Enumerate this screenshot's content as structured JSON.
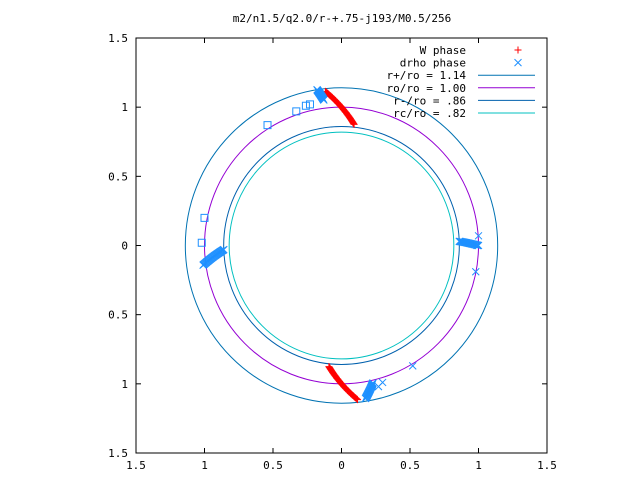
{
  "chart_data": {
    "type": "scatter",
    "title": "m2/n1.5/q2.0/r-+.75-j193/M0.5/256",
    "xlabel": "",
    "ylabel": "",
    "xlim": [
      -1.5,
      1.5
    ],
    "ylim": [
      -1.5,
      1.5
    ],
    "x_ticks": [
      -1.5,
      -1,
      -0.5,
      0,
      0.5,
      1,
      1.5
    ],
    "y_ticks": [
      -1.5,
      -1,
      -0.5,
      0,
      0.5,
      1,
      1.5
    ],
    "x_tick_labels": [
      "1.5",
      "1",
      "0.5",
      "0",
      "0.5",
      "1",
      "1.5"
    ],
    "y_tick_labels": [
      "1.5",
      "1",
      "0.5",
      "0",
      "0.5",
      "1",
      "1.5"
    ],
    "grid": false,
    "legend_position": "top-right",
    "circles": [
      {
        "name": "r+/ro = 1.14",
        "radius": 1.14,
        "color": "#0072B2"
      },
      {
        "name": "ro/ro = 1.00",
        "radius": 1.0,
        "color": "#9400D3"
      },
      {
        "name": "r-/ro = .86",
        "radius": 0.86,
        "color": "#0060AD"
      },
      {
        "name": "rc/ro = .82",
        "radius": 0.82,
        "color": "#00C0C0"
      }
    ],
    "series": [
      {
        "name": "W phase",
        "marker": "plus",
        "color": "#FF0000",
        "clusters": [
          {
            "theta_from": 96,
            "theta_to": 84,
            "r_from": 1.12,
            "r_to": 0.88,
            "count": 45
          },
          {
            "theta_from": 264,
            "theta_to": 276,
            "r_from": 0.88,
            "r_to": 1.12,
            "count": 45
          }
        ]
      },
      {
        "name": "drho phase",
        "marker": "cross",
        "color": "#1E90FF",
        "clusters": [
          {
            "theta_from": 97,
            "theta_to": 99,
            "r_from": 1.06,
            "r_to": 1.14,
            "count": 18
          },
          {
            "theta_from": 188,
            "theta_to": 182,
            "r_from": 1.02,
            "r_to": 0.86,
            "count": 30
          },
          {
            "theta_from": 2,
            "theta_to": 0,
            "r_from": 0.86,
            "r_to": 1.0,
            "count": 22
          },
          {
            "theta_from": 279,
            "theta_to": 283,
            "r_from": 1.12,
            "r_to": 1.02,
            "count": 22
          }
        ],
        "points": [
          {
            "x": -0.23,
            "y": 1.02,
            "m": "box"
          },
          {
            "x": -0.26,
            "y": 1.01,
            "m": "box"
          },
          {
            "x": -0.33,
            "y": 0.97,
            "m": "box"
          },
          {
            "x": -0.54,
            "y": 0.87,
            "m": "box"
          },
          {
            "x": -1.0,
            "y": 0.2,
            "m": "box"
          },
          {
            "x": -1.02,
            "y": 0.02,
            "m": "box"
          },
          {
            "x": 1.0,
            "y": 0.07,
            "m": "cross"
          },
          {
            "x": 0.99,
            "y": 0.0,
            "m": "cross"
          },
          {
            "x": 0.98,
            "y": -0.19,
            "m": "cross"
          },
          {
            "x": 0.27,
            "y": -1.02,
            "m": "cross"
          },
          {
            "x": 0.3,
            "y": -0.99,
            "m": "cross"
          },
          {
            "x": 0.52,
            "y": -0.87,
            "m": "cross"
          }
        ]
      }
    ]
  }
}
